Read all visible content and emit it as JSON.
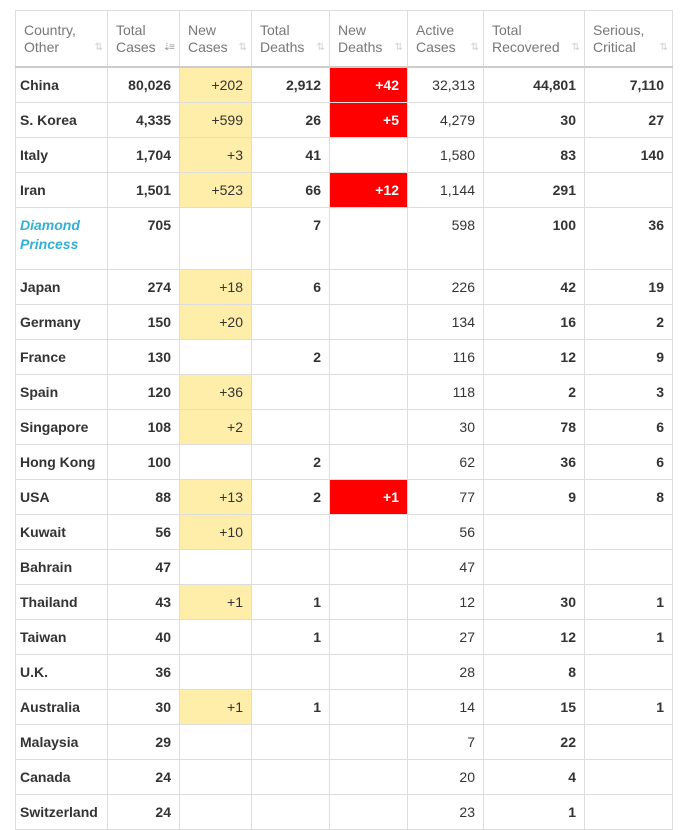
{
  "columns": [
    {
      "line1": "Country,",
      "line2": "Other"
    },
    {
      "line1": "Total",
      "line2": "Cases"
    },
    {
      "line1": "New",
      "line2": "Cases"
    },
    {
      "line1": "Total",
      "line2": "Deaths"
    },
    {
      "line1": "New",
      "line2": "Deaths"
    },
    {
      "line1": "Active",
      "line2": "Cases"
    },
    {
      "line1": "Total",
      "line2": "Recovered"
    },
    {
      "line1": "Serious,",
      "line2": "Critical"
    }
  ],
  "sort_icons": {
    "default": "⇅",
    "active": "⇣≡"
  },
  "colors": {
    "new_cases_bg": "#FFEEAA",
    "new_deaths_bg": "#FF0000",
    "link_country": "#33b0d8"
  },
  "rows": [
    {
      "country": "China",
      "total_cases": "80,026",
      "new_cases": "+202",
      "total_deaths": "2,912",
      "new_deaths": "+42",
      "active": "32,313",
      "recovered": "44,801",
      "serious": "7,110"
    },
    {
      "country": "S. Korea",
      "total_cases": "4,335",
      "new_cases": "+599",
      "total_deaths": "26",
      "new_deaths": "+5",
      "active": "4,279",
      "recovered": "30",
      "serious": "27"
    },
    {
      "country": "Italy",
      "total_cases": "1,704",
      "new_cases": "+3",
      "total_deaths": "41",
      "new_deaths": "",
      "active": "1,580",
      "recovered": "83",
      "serious": "140"
    },
    {
      "country": "Iran",
      "total_cases": "1,501",
      "new_cases": "+523",
      "total_deaths": "66",
      "new_deaths": "+12",
      "active": "1,144",
      "recovered": "291",
      "serious": ""
    },
    {
      "country": "Diamond Princess",
      "country_line1": "Diamond",
      "country_line2": "Princess",
      "total_cases": "705",
      "new_cases": "",
      "total_deaths": "7",
      "new_deaths": "",
      "active": "598",
      "recovered": "100",
      "serious": "36"
    },
    {
      "country": "Japan",
      "total_cases": "274",
      "new_cases": "+18",
      "total_deaths": "6",
      "new_deaths": "",
      "active": "226",
      "recovered": "42",
      "serious": "19"
    },
    {
      "country": "Germany",
      "total_cases": "150",
      "new_cases": "+20",
      "total_deaths": "",
      "new_deaths": "",
      "active": "134",
      "recovered": "16",
      "serious": "2"
    },
    {
      "country": "France",
      "total_cases": "130",
      "new_cases": "",
      "total_deaths": "2",
      "new_deaths": "",
      "active": "116",
      "recovered": "12",
      "serious": "9"
    },
    {
      "country": "Spain",
      "total_cases": "120",
      "new_cases": "+36",
      "total_deaths": "",
      "new_deaths": "",
      "active": "118",
      "recovered": "2",
      "serious": "3"
    },
    {
      "country": "Singapore",
      "total_cases": "108",
      "new_cases": "+2",
      "total_deaths": "",
      "new_deaths": "",
      "active": "30",
      "recovered": "78",
      "serious": "6"
    },
    {
      "country": "Hong Kong",
      "total_cases": "100",
      "new_cases": "",
      "total_deaths": "2",
      "new_deaths": "",
      "active": "62",
      "recovered": "36",
      "serious": "6"
    },
    {
      "country": "USA",
      "total_cases": "88",
      "new_cases": "+13",
      "total_deaths": "2",
      "new_deaths": "+1",
      "active": "77",
      "recovered": "9",
      "serious": "8"
    },
    {
      "country": "Kuwait",
      "total_cases": "56",
      "new_cases": "+10",
      "total_deaths": "",
      "new_deaths": "",
      "active": "56",
      "recovered": "",
      "serious": ""
    },
    {
      "country": "Bahrain",
      "total_cases": "47",
      "new_cases": "",
      "total_deaths": "",
      "new_deaths": "",
      "active": "47",
      "recovered": "",
      "serious": ""
    },
    {
      "country": "Thailand",
      "total_cases": "43",
      "new_cases": "+1",
      "total_deaths": "1",
      "new_deaths": "",
      "active": "12",
      "recovered": "30",
      "serious": "1"
    },
    {
      "country": "Taiwan",
      "total_cases": "40",
      "new_cases": "",
      "total_deaths": "1",
      "new_deaths": "",
      "active": "27",
      "recovered": "12",
      "serious": "1"
    },
    {
      "country": "U.K.",
      "total_cases": "36",
      "new_cases": "",
      "total_deaths": "",
      "new_deaths": "",
      "active": "28",
      "recovered": "8",
      "serious": ""
    },
    {
      "country": "Australia",
      "total_cases": "30",
      "new_cases": "+1",
      "total_deaths": "1",
      "new_deaths": "",
      "active": "14",
      "recovered": "15",
      "serious": "1"
    },
    {
      "country": "Malaysia",
      "total_cases": "29",
      "new_cases": "",
      "total_deaths": "",
      "new_deaths": "",
      "active": "7",
      "recovered": "22",
      "serious": ""
    },
    {
      "country": "Canada",
      "total_cases": "24",
      "new_cases": "",
      "total_deaths": "",
      "new_deaths": "",
      "active": "20",
      "recovered": "4",
      "serious": ""
    },
    {
      "country": "Switzerland",
      "total_cases": "24",
      "new_cases": "",
      "total_deaths": "",
      "new_deaths": "",
      "active": "23",
      "recovered": "1",
      "serious": ""
    }
  ]
}
